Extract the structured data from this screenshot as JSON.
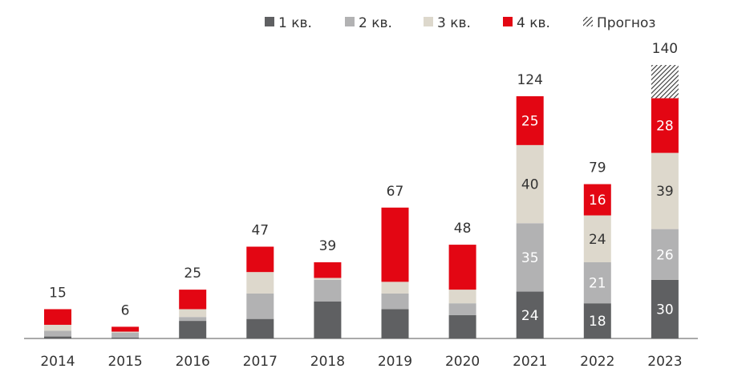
{
  "chart_data": {
    "type": "stacked_bar",
    "categories": [
      "2014",
      "2015",
      "2016",
      "2017",
      "2018",
      "2019",
      "2020",
      "2021",
      "2022",
      "2023"
    ],
    "series": [
      {
        "name": "1 кв.",
        "color": "#5f6062",
        "label_color": "#ffffff",
        "values": [
          1,
          0.5,
          9,
          10,
          19,
          15,
          12,
          24,
          18,
          30
        ],
        "value_labels": [
          null,
          null,
          null,
          null,
          null,
          null,
          null,
          "24",
          "18",
          "30"
        ]
      },
      {
        "name": "2 кв.",
        "color": "#b2b2b3",
        "label_color": "#ffffff",
        "values": [
          3,
          2.5,
          2,
          13,
          11,
          8,
          6,
          35,
          21,
          26
        ],
        "value_labels": [
          null,
          null,
          null,
          null,
          null,
          null,
          null,
          "35",
          "21",
          "26"
        ]
      },
      {
        "name": "3 кв.",
        "color": "#ddd8cc",
        "label_color": "#333333",
        "values": [
          3,
          0.5,
          4,
          11,
          1,
          6,
          7,
          40,
          24,
          39
        ],
        "value_labels": [
          null,
          null,
          null,
          null,
          null,
          null,
          null,
          "40",
          "24",
          "39"
        ]
      },
      {
        "name": "4 кв.",
        "color": "#e30613",
        "label_color": "#ffffff",
        "values": [
          8,
          2.5,
          10,
          13,
          8,
          38,
          23,
          25,
          16,
          28
        ],
        "value_labels": [
          null,
          null,
          null,
          null,
          null,
          null,
          null,
          "25",
          "16",
          "28"
        ]
      },
      {
        "name": "Прогноз",
        "color": "hatch",
        "values": [
          null,
          null,
          null,
          null,
          null,
          null,
          null,
          null,
          null,
          17
        ]
      }
    ],
    "totals": [
      15,
      6,
      25,
      47,
      39,
      67,
      48,
      124,
      79,
      140
    ],
    "ylim": [
      0,
      140
    ]
  }
}
